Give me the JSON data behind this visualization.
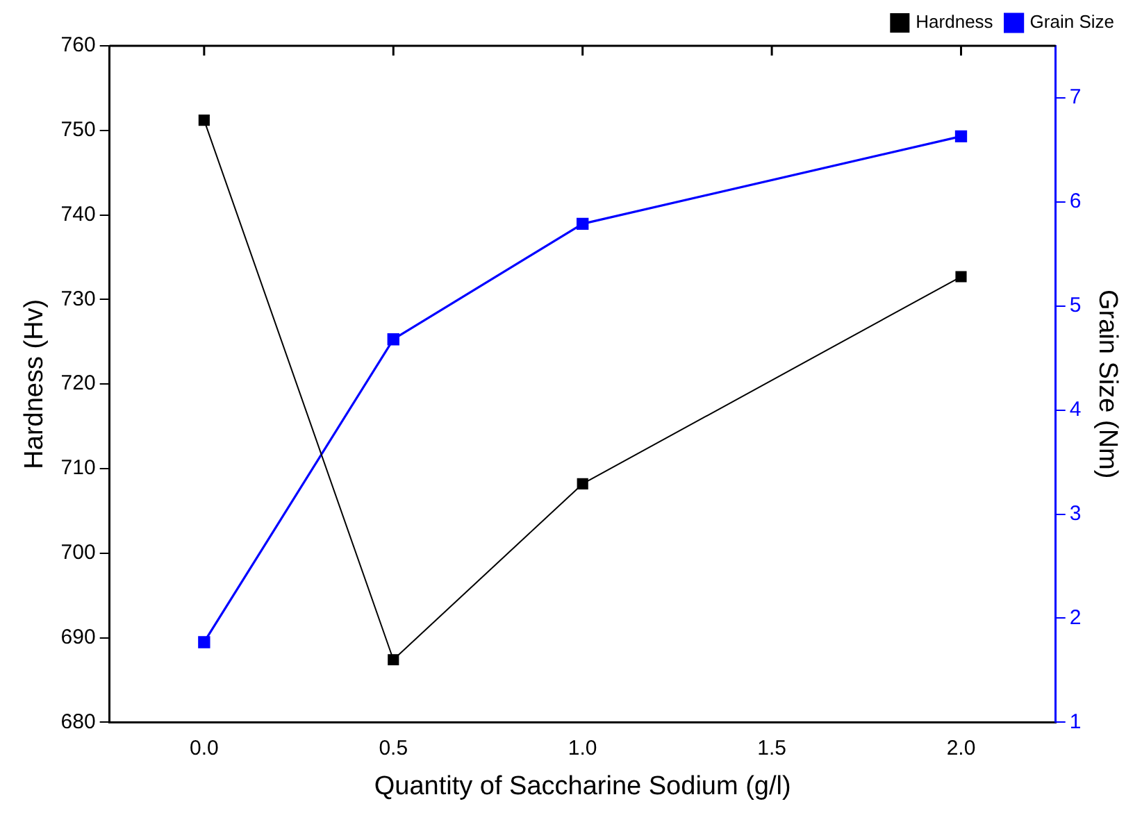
{
  "chart_data": {
    "type": "line",
    "xlabel": "Quantity of Saccharine Sodium (g/l)",
    "ylabel": "Hardness (Hv)",
    "y2label": "Grain Size (Nm)",
    "x": [
      0,
      0.5,
      1,
      2
    ],
    "series": [
      {
        "name": "Hardness",
        "color": "#000000",
        "values": [
          751.2,
          687.4,
          708.2,
          732.7
        ]
      },
      {
        "name": "Grain Size",
        "color": "#0000ff",
        "axis": "y2",
        "values": [
          1.77,
          4.68,
          5.79,
          6.63
        ]
      }
    ],
    "xlim": [
      -0.25,
      2.25
    ],
    "xticks": [
      {
        "value": 0,
        "label": "0.0"
      },
      {
        "value": 0.5,
        "label": "0.5"
      },
      {
        "value": 1,
        "label": "1.0"
      },
      {
        "value": 1.5,
        "label": "1.5"
      },
      {
        "value": 2,
        "label": "2.0"
      }
    ],
    "ylim": [
      680,
      760
    ],
    "yticks": [
      680,
      690,
      700,
      710,
      720,
      730,
      740,
      750,
      760
    ],
    "y2lim": [
      1,
      7.5
    ],
    "y2ticks": [
      1,
      2,
      3,
      4,
      5,
      6,
      7
    ],
    "marker": "square",
    "legend": "top right",
    "grid": false
  }
}
